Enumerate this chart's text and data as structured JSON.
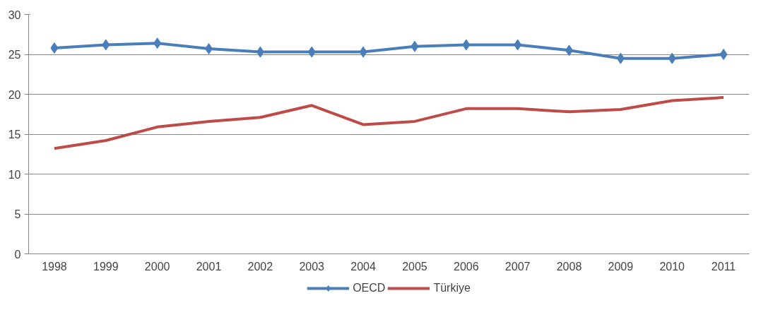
{
  "chart_data": {
    "type": "line",
    "categories": [
      "1998",
      "1999",
      "2000",
      "2001",
      "2002",
      "2003",
      "2004",
      "2005",
      "2006",
      "2007",
      "2008",
      "2009",
      "2010",
      "2011"
    ],
    "series": [
      {
        "name": "OECD",
        "color": "#4a7ebb",
        "marker": "diamond",
        "values": [
          25.8,
          26.2,
          26.4,
          25.7,
          25.3,
          25.3,
          25.3,
          26.0,
          26.2,
          26.2,
          25.5,
          24.5,
          24.5,
          25.0
        ]
      },
      {
        "name": "Türkiye",
        "color": "#be4b48",
        "marker": "none",
        "values": [
          13.2,
          14.2,
          15.9,
          16.6,
          17.1,
          18.6,
          16.2,
          16.6,
          18.2,
          18.2,
          17.8,
          18.1,
          19.2,
          19.6
        ]
      }
    ],
    "ylim": [
      0,
      30
    ],
    "yticks": [
      0,
      5,
      10,
      15,
      20,
      25,
      30
    ],
    "grid": "y",
    "legend": "bottom",
    "line_style": "solid"
  }
}
